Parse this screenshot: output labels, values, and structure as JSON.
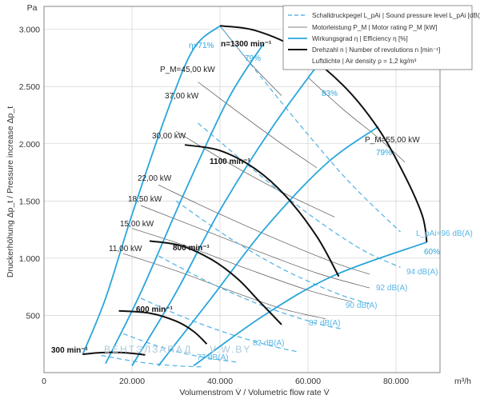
{
  "chart_data": {
    "type": "line",
    "x_unit": "m³/h",
    "y_unit": "Pa",
    "xlabel": "Volumenstrom V̇ / Volumetric flow rate V̇",
    "ylabel": "Druckerhöhung Δp_t / Pressure increase Δp_t",
    "xlim": [
      0,
      90000
    ],
    "ylim": [
      0,
      3200
    ],
    "x_ticks": [
      0,
      20000,
      40000,
      60000,
      80000
    ],
    "x_tick_labels": [
      "0",
      "20.000",
      "40.000",
      "60.000",
      "80.000"
    ],
    "y_ticks": [
      500,
      1000,
      1500,
      2000,
      2500,
      3000
    ],
    "y_tick_labels": [
      "500",
      "1.000",
      "1.500",
      "2.000",
      "2.500",
      "3.000"
    ],
    "grid": true,
    "legend_position": "top-right",
    "legend": [
      {
        "style": "dashed-light-blue",
        "text": "Schalldruckpegel L_pAi | Sound pressure level L_pAi [dB(A)]"
      },
      {
        "style": "thin-gray",
        "text": "Motorleistung P_M | Motor rating P_M [kW]"
      },
      {
        "style": "blue",
        "text": "Wirkungsgrad η | Efficiency η [%]"
      },
      {
        "style": "black-bold",
        "text": "Drehzahl n | Number of revolutions n [min⁻¹]"
      },
      {
        "style": "none",
        "text": "Luftdichte | Air density ρ = 1,2 kg/m³"
      }
    ],
    "speed_curves": [
      {
        "name": "300 min⁻¹",
        "points": [
          [
            8800,
            160
          ],
          [
            13000,
            175
          ],
          [
            18000,
            175
          ],
          [
            23000,
            155
          ]
        ]
      },
      {
        "name": "600 min⁻¹",
        "points": [
          [
            17000,
            540
          ],
          [
            24000,
            520
          ],
          [
            30000,
            450
          ],
          [
            34000,
            360
          ],
          [
            37000,
            250
          ]
        ]
      },
      {
        "name": "800 min⁻¹",
        "points": [
          [
            24000,
            1150
          ],
          [
            31000,
            1110
          ],
          [
            38000,
            990
          ],
          [
            44000,
            820
          ],
          [
            49000,
            620
          ],
          [
            54000,
            420
          ]
        ]
      },
      {
        "name": "1100 min⁻¹",
        "points": [
          [
            32000,
            1990
          ],
          [
            40000,
            1940
          ],
          [
            48000,
            1780
          ],
          [
            55000,
            1540
          ],
          [
            62000,
            1190
          ],
          [
            67000,
            840
          ]
        ]
      },
      {
        "name": "n=1300 min⁻¹",
        "points": [
          [
            40000,
            3030
          ],
          [
            48000,
            2990
          ],
          [
            58000,
            2820
          ],
          [
            68000,
            2510
          ],
          [
            76000,
            2130
          ],
          [
            82000,
            1720
          ],
          [
            86000,
            1370
          ],
          [
            87000,
            1140
          ]
        ]
      }
    ],
    "efficiency_lines": [
      {
        "name": "η=71%",
        "points": [
          [
            8800,
            160
          ],
          [
            14000,
            650
          ],
          [
            20000,
            1380
          ],
          [
            28000,
            2280
          ],
          [
            34000,
            2830
          ],
          [
            40000,
            3030
          ]
        ]
      },
      {
        "name": "79%",
        "points": [
          [
            14000,
            80
          ],
          [
            22000,
            700
          ],
          [
            32000,
            1580
          ],
          [
            42000,
            2400
          ],
          [
            50000,
            2880
          ]
        ]
      },
      {
        "name": "83%",
        "points": [
          [
            20000,
            60
          ],
          [
            30000,
            700
          ],
          [
            40000,
            1420
          ],
          [
            52000,
            2150
          ],
          [
            64000,
            2780
          ]
        ]
      },
      {
        "name": "79%",
        "points": [
          [
            26000,
            60
          ],
          [
            38000,
            650
          ],
          [
            50000,
            1250
          ],
          [
            64000,
            1820
          ],
          [
            76000,
            2150
          ]
        ]
      },
      {
        "name": "60%",
        "points": [
          [
            34000,
            60
          ],
          [
            50000,
            500
          ],
          [
            66000,
            850
          ],
          [
            87000,
            1140
          ]
        ]
      }
    ],
    "sound_lines": [
      {
        "name": "L_pAi=96 dB(A)",
        "points": [
          [
            40000,
            3030
          ],
          [
            50000,
            2550
          ],
          [
            60000,
            2080
          ],
          [
            70000,
            1640
          ],
          [
            81000,
            1230
          ]
        ]
      },
      {
        "name": "94 dB(A)",
        "points": [
          [
            35000,
            2180
          ],
          [
            48000,
            1760
          ],
          [
            60000,
            1390
          ],
          [
            72000,
            1080
          ],
          [
            81000,
            920
          ]
        ]
      },
      {
        "name": "92 dB(A)",
        "points": [
          [
            30000,
            1500
          ],
          [
            42000,
            1180
          ],
          [
            54000,
            910
          ],
          [
            66000,
            700
          ],
          [
            74000,
            600
          ]
        ]
      },
      {
        "name": "90 dB(A)",
        "points": [
          [
            26000,
            1020
          ],
          [
            38000,
            780
          ],
          [
            50000,
            580
          ],
          [
            62000,
            430
          ],
          [
            68000,
            380
          ]
        ]
      },
      {
        "name": "87 dB(A)",
        "points": [
          [
            22000,
            650
          ],
          [
            32000,
            480
          ],
          [
            42000,
            340
          ],
          [
            52000,
            230
          ],
          [
            58000,
            180
          ]
        ]
      },
      {
        "name": "82 dB(A)",
        "points": [
          [
            18000,
            340
          ],
          [
            26000,
            230
          ],
          [
            34000,
            150
          ],
          [
            44000,
            90
          ]
        ]
      },
      {
        "name": "77 dB(A)",
        "points": [
          [
            13000,
            150
          ],
          [
            22000,
            90
          ],
          [
            30000,
            60
          ],
          [
            36000,
            50
          ]
        ]
      }
    ],
    "power_lines": [
      {
        "name": "P_M=45,00 kW",
        "points": [
          [
            40000,
            3030
          ],
          [
            47000,
            2700
          ],
          [
            54000,
            2420
          ]
        ]
      },
      {
        "name": "37,00 kW",
        "points": [
          [
            35000,
            2540
          ],
          [
            44000,
            2280
          ],
          [
            54000,
            2000
          ],
          [
            62000,
            1790
          ]
        ]
      },
      {
        "name": "30,00 kW",
        "points": [
          [
            30000,
            2110
          ],
          [
            42000,
            1830
          ],
          [
            54000,
            1580
          ],
          [
            66000,
            1360
          ]
        ]
      },
      {
        "name": "22,00 kW",
        "points": [
          [
            26000,
            1640
          ],
          [
            38000,
            1420
          ],
          [
            52000,
            1180
          ],
          [
            66000,
            960
          ],
          [
            74000,
            860
          ]
        ]
      },
      {
        "name": "18,50 kW",
        "points": [
          [
            22000,
            1460
          ],
          [
            34000,
            1280
          ],
          [
            48000,
            1070
          ],
          [
            62000,
            870
          ],
          [
            74000,
            740
          ]
        ]
      },
      {
        "name": "15,00 kW",
        "points": [
          [
            20000,
            1260
          ],
          [
            32000,
            1110
          ],
          [
            46000,
            910
          ],
          [
            60000,
            720
          ],
          [
            70000,
            620
          ]
        ]
      },
      {
        "name": "11,00 kW",
        "points": [
          [
            18000,
            1040
          ],
          [
            30000,
            890
          ],
          [
            42000,
            720
          ],
          [
            54000,
            560
          ],
          [
            64000,
            470
          ]
        ]
      },
      {
        "name": "P_M=55,00 kW",
        "points": [
          [
            60000,
            2580
          ],
          [
            68000,
            2300
          ],
          [
            76000,
            2050
          ],
          [
            82000,
            1840
          ]
        ]
      }
    ],
    "labels": {
      "efficiency": [
        "η=71%",
        "79%",
        "83%",
        "79%",
        "60%"
      ],
      "speeds": [
        "n=1300 min⁻¹",
        "1100 min⁻¹",
        "800 min⁻¹",
        "600 min⁻¹",
        "300 min⁻¹"
      ],
      "power": [
        "P_M=45,00 kW",
        "37,00 kW",
        "30,00 kW",
        "22,00 kW",
        "18,50 kW",
        "15,00 kW",
        "11,00 kW",
        "P_M=55,00 kW"
      ],
      "sound": [
        "L_pAi=96 dB(A)",
        "94 dB(A)",
        "92 dB(A)",
        "90 dB(A)",
        "87 dB(A)",
        "82 dB(A)",
        "77 dB(A)"
      ],
      "watermark": [
        "ВЕНТЭЛЗАПАД",
        "V.W.BY"
      ]
    },
    "colors": {
      "efficiency": "#2aa6dc",
      "sound": "#5ab7e6",
      "speed": "#111111",
      "power": "#555555",
      "grid": "#c9c9c9"
    }
  }
}
